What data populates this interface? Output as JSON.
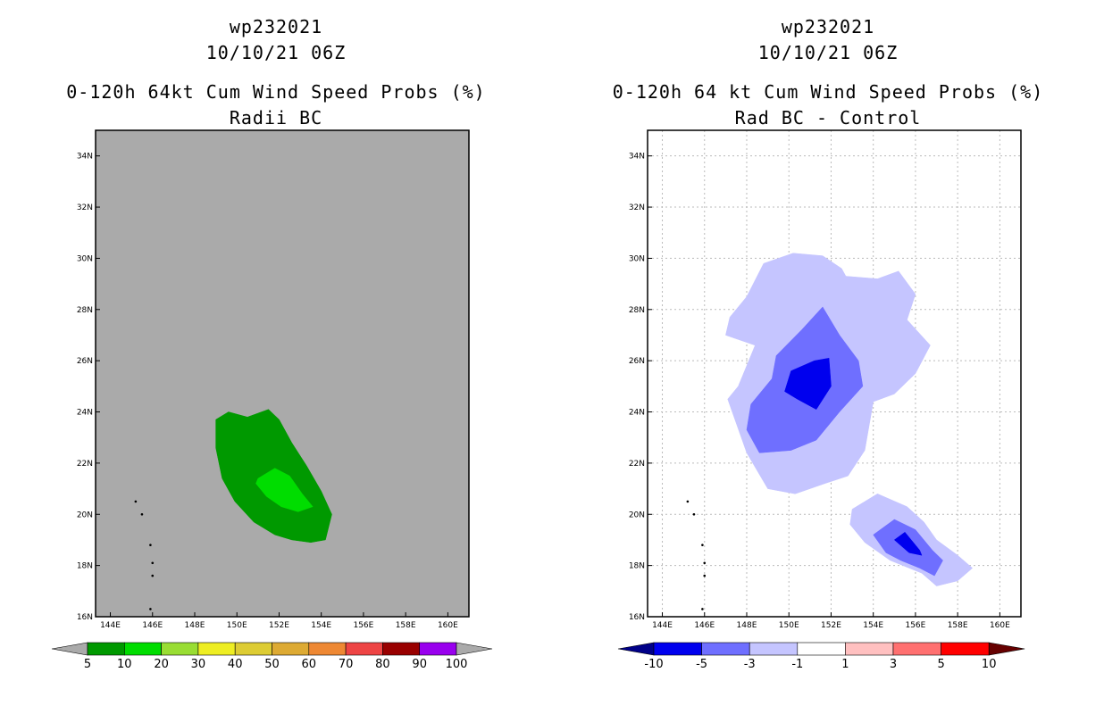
{
  "charts": [
    {
      "title_line1": "wp232021",
      "title_line2": "10/10/21 06Z",
      "title_line3": "0-120h 64kt Cum Wind Speed Probs (%)",
      "title_line4": "Radii BC",
      "x_tick_labels": [
        "144E",
        "146E",
        "148E",
        "150E",
        "152E",
        "154E",
        "156E",
        "158E",
        "160E"
      ],
      "y_tick_labels": [
        "16N",
        "18N",
        "20N",
        "22N",
        "24N",
        "26N",
        "28N",
        "30N",
        "32N",
        "34N"
      ],
      "colorbar_labels": [
        "5",
        "10",
        "20",
        "30",
        "40",
        "50",
        "60",
        "70",
        "80",
        "90",
        "100"
      ],
      "colorbar_colors": [
        "#009900",
        "#00dd00",
        "#99dd33",
        "#eeee22",
        "#ddcc33",
        "#ddaa33",
        "#ee8833",
        "#ee4444",
        "#990000",
        "#9900ee"
      ],
      "colorbar_low_color": "#aaaaaa",
      "colorbar_high_color": "#aaaaaa",
      "background_color": "#aaaaaa"
    },
    {
      "title_line1": "wp232021",
      "title_line2": "10/10/21 06Z",
      "title_line3": "0-120h 64 kt Cum Wind Speed Probs (%)",
      "title_line4": "Rad BC - Control",
      "x_tick_labels": [
        "144E",
        "146E",
        "148E",
        "150E",
        "152E",
        "154E",
        "156E",
        "158E",
        "160E"
      ],
      "y_tick_labels": [
        "16N",
        "18N",
        "20N",
        "22N",
        "24N",
        "26N",
        "28N",
        "30N",
        "32N",
        "34N"
      ],
      "colorbar_labels": [
        "-10",
        "-5",
        "-3",
        "-1",
        "1",
        "3",
        "5",
        "10"
      ],
      "colorbar_colors": [
        "#0000ee",
        "#6f6fff",
        "#c5c5ff",
        "#ffffff",
        "#ffc0c0",
        "#ff7070",
        "#ff0000"
      ],
      "colorbar_low_color": "#000088",
      "colorbar_high_color": "#660000",
      "background_color": "#ffffff"
    }
  ],
  "chart_data": [
    {
      "type": "heatmap",
      "title": "0-120h 64kt Cum Wind Speed Probs (%) — Radii BC",
      "storm": "wp232021",
      "valid": "10/10/21 06Z",
      "xlim": [
        143.3,
        161.0
      ],
      "ylim": [
        16.0,
        35.0
      ],
      "levels": [
        5,
        10,
        20,
        30,
        40,
        50,
        60,
        70,
        80,
        90,
        100
      ],
      "contours": [
        {
          "level": "5-10",
          "color": "#009900",
          "polygon": [
            [
              149.0,
              23.7
            ],
            [
              149.6,
              24.0
            ],
            [
              150.5,
              23.8
            ],
            [
              151.5,
              24.1
            ],
            [
              152.0,
              23.7
            ],
            [
              152.6,
              22.8
            ],
            [
              153.3,
              21.9
            ],
            [
              154.0,
              20.9
            ],
            [
              154.5,
              20.0
            ],
            [
              154.2,
              19.0
            ],
            [
              153.5,
              18.9
            ],
            [
              152.6,
              19.0
            ],
            [
              151.8,
              19.2
            ],
            [
              150.8,
              19.7
            ],
            [
              149.9,
              20.5
            ],
            [
              149.3,
              21.4
            ],
            [
              149.0,
              22.6
            ]
          ]
        },
        {
          "level": "10-20",
          "color": "#00dd00",
          "polygon": [
            [
              151.0,
              21.4
            ],
            [
              151.8,
              21.8
            ],
            [
              152.5,
              21.5
            ],
            [
              153.1,
              20.8
            ],
            [
              153.6,
              20.3
            ],
            [
              152.9,
              20.1
            ],
            [
              152.1,
              20.3
            ],
            [
              151.4,
              20.7
            ],
            [
              150.9,
              21.2
            ]
          ]
        }
      ],
      "islands": [
        [
          145.2,
          20.5
        ],
        [
          145.5,
          20.0
        ],
        [
          145.9,
          18.8
        ],
        [
          146.0,
          18.1
        ],
        [
          146.0,
          17.6
        ],
        [
          145.9,
          16.3
        ]
      ]
    },
    {
      "type": "heatmap",
      "title": "0-120h 64 kt Cum Wind Speed Probs (%) — Rad BC - Control",
      "storm": "wp232021",
      "valid": "10/10/21 06Z",
      "xlim": [
        143.3,
        161.0
      ],
      "ylim": [
        16.0,
        35.0
      ],
      "levels": [
        -10,
        -5,
        -3,
        -1,
        1,
        3,
        5,
        10
      ],
      "contours": [
        {
          "level": "-3 to -1",
          "color": "#c5c5ff",
          "polygon": [
            [
              147.6,
              25.0
            ],
            [
              148.4,
              26.6
            ],
            [
              147.0,
              27.0
            ],
            [
              147.2,
              27.7
            ],
            [
              148.0,
              28.5
            ],
            [
              148.8,
              29.8
            ],
            [
              150.2,
              30.2
            ],
            [
              151.6,
              30.1
            ],
            [
              152.5,
              29.6
            ],
            [
              152.7,
              29.3
            ],
            [
              154.2,
              29.2
            ],
            [
              155.2,
              29.5
            ],
            [
              156.0,
              28.6
            ],
            [
              155.6,
              27.6
            ],
            [
              156.7,
              26.6
            ],
            [
              156.0,
              25.5
            ],
            [
              155.0,
              24.7
            ],
            [
              154.0,
              24.4
            ],
            [
              153.6,
              22.5
            ],
            [
              152.8,
              21.5
            ],
            [
              151.7,
              21.2
            ],
            [
              150.3,
              20.8
            ],
            [
              149.0,
              21.0
            ],
            [
              148.0,
              22.4
            ],
            [
              147.1,
              24.5
            ]
          ]
        },
        {
          "level": "-3 to -1",
          "color": "#c5c5ff",
          "polygon": [
            [
              153.0,
              20.2
            ],
            [
              154.2,
              20.8
            ],
            [
              155.6,
              20.3
            ],
            [
              156.4,
              19.7
            ],
            [
              157.0,
              19.0
            ],
            [
              158.0,
              18.4
            ],
            [
              158.7,
              17.9
            ],
            [
              158.0,
              17.4
            ],
            [
              157.0,
              17.2
            ],
            [
              156.3,
              17.7
            ],
            [
              154.8,
              18.2
            ],
            [
              153.6,
              18.9
            ],
            [
              152.9,
              19.6
            ]
          ]
        },
        {
          "level": "-5 to -3",
          "color": "#6f6fff",
          "polygon": [
            [
              148.2,
              24.3
            ],
            [
              149.2,
              25.3
            ],
            [
              149.4,
              26.2
            ],
            [
              150.6,
              27.2
            ],
            [
              151.6,
              28.1
            ],
            [
              152.4,
              27.0
            ],
            [
              153.3,
              26.0
            ],
            [
              153.5,
              25.0
            ],
            [
              152.4,
              24.0
            ],
            [
              151.3,
              22.9
            ],
            [
              150.1,
              22.5
            ],
            [
              148.6,
              22.4
            ],
            [
              148.0,
              23.3
            ]
          ]
        },
        {
          "level": "-5 to -3",
          "color": "#6f6fff",
          "polygon": [
            [
              154.0,
              19.2
            ],
            [
              155.0,
              19.8
            ],
            [
              156.0,
              19.4
            ],
            [
              156.8,
              18.6
            ],
            [
              157.3,
              18.2
            ],
            [
              156.9,
              17.6
            ],
            [
              156.2,
              17.9
            ],
            [
              155.3,
              18.2
            ],
            [
              154.6,
              18.5
            ]
          ]
        },
        {
          "level": "-10 to -5",
          "color": "#0000ee",
          "polygon": [
            [
              149.8,
              24.8
            ],
            [
              150.1,
              25.6
            ],
            [
              151.2,
              26.0
            ],
            [
              151.9,
              26.1
            ],
            [
              152.0,
              25.0
            ],
            [
              151.3,
              24.1
            ],
            [
              150.4,
              24.5
            ]
          ]
        },
        {
          "level": "-10 to -5",
          "color": "#0000ee",
          "polygon": [
            [
              155.0,
              19.0
            ],
            [
              155.5,
              19.3
            ],
            [
              156.2,
              18.6
            ],
            [
              156.3,
              18.4
            ],
            [
              155.7,
              18.5
            ]
          ]
        }
      ],
      "islands": [
        [
          145.2,
          20.5
        ],
        [
          145.5,
          20.0
        ],
        [
          145.9,
          18.8
        ],
        [
          146.0,
          18.1
        ],
        [
          146.0,
          17.6
        ],
        [
          145.9,
          16.3
        ]
      ]
    }
  ]
}
